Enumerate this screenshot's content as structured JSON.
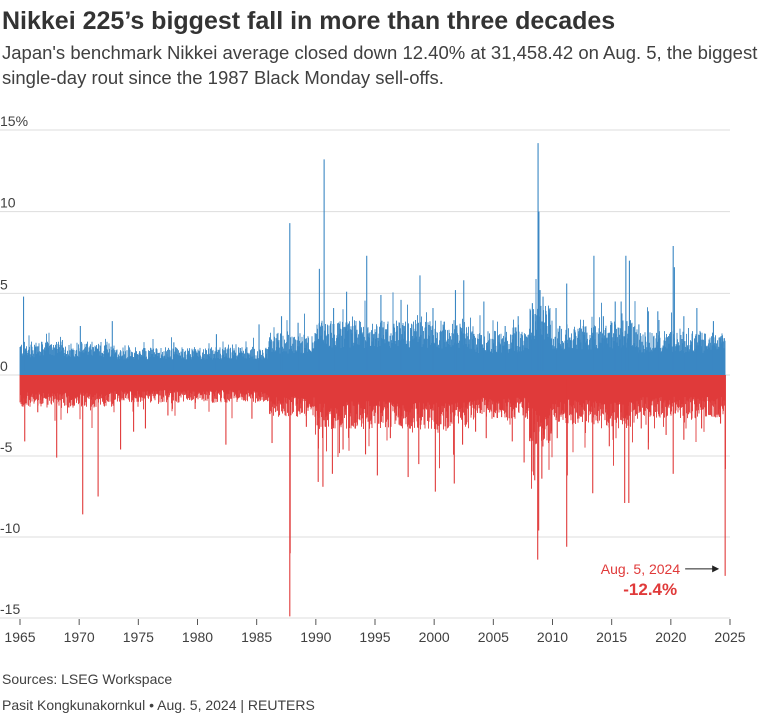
{
  "title": "Nikkei 225’s biggest fall in more than three decades",
  "subtitle": "Japan's benchmark Nikkei average closed down 12.40% at 31,458.42 on Aug. 5, the biggest single-day rout since the 1987 Black Monday sell-offs.",
  "source": "Sources: LSEG Workspace",
  "credit": "Pasit Kongkunakornkul • Aug. 5, 2024 | REUTERS",
  "colors": {
    "up": "#3a87c3",
    "down": "#e03a3a",
    "grid": "#dddddd",
    "text": "#333333",
    "annotation": "#e03a3a"
  },
  "chart_data": {
    "type": "bar",
    "title": "",
    "xlabel": "",
    "ylabel": "",
    "xlim": [
      1965,
      2025
    ],
    "ylim": [
      -15,
      15
    ],
    "grid": true,
    "y_ticks": [
      15,
      10,
      5,
      0,
      -5,
      -10,
      -15
    ],
    "y_tick_labels": [
      "15%",
      "10",
      "5",
      "0",
      "-5",
      "-10",
      "-15"
    ],
    "x_ticks": [
      1965,
      1970,
      1975,
      1980,
      1985,
      1990,
      1995,
      2000,
      2005,
      2010,
      2015,
      2020,
      2025
    ],
    "x_tick_labels": [
      "1965",
      "1970",
      "1975",
      "1980",
      "1985",
      "1990",
      "1995",
      "2000",
      "2005",
      "2010",
      "2015",
      "2020",
      "2025"
    ],
    "series": [
      {
        "values": [
          [
            1965.3,
            4.8
          ],
          [
            1970.1,
            3.0
          ],
          [
            1972.8,
            3.3
          ],
          [
            1978.0,
            2.0
          ],
          [
            1981.6,
            2.5
          ],
          [
            1985.2,
            3.1
          ],
          [
            1987.1,
            3.6
          ],
          [
            1987.8,
            9.3
          ],
          [
            1988.5,
            3.2
          ],
          [
            1990.3,
            6.5
          ],
          [
            1990.7,
            13.2
          ],
          [
            1991.5,
            4.1
          ],
          [
            1992.6,
            5.1
          ],
          [
            1994.3,
            7.3
          ],
          [
            1995.5,
            4.9
          ],
          [
            1997.2,
            4.6
          ],
          [
            1998.8,
            6.1
          ],
          [
            1999.9,
            4.1
          ],
          [
            2001.8,
            5.2
          ],
          [
            2002.5,
            5.8
          ],
          [
            2004.2,
            4.5
          ],
          [
            2006.0,
            3.0
          ],
          [
            2007.1,
            3.6
          ],
          [
            2008.3,
            4.4
          ],
          [
            2008.78,
            14.2
          ],
          [
            2008.85,
            10.0
          ],
          [
            2008.95,
            5.2
          ],
          [
            2009.2,
            4.8
          ],
          [
            2010.3,
            4.1
          ],
          [
            2011.2,
            5.6
          ],
          [
            2012.6,
            3.0
          ],
          [
            2013.5,
            7.3
          ],
          [
            2014.3,
            3.6
          ],
          [
            2015.3,
            4.5
          ],
          [
            2015.8,
            4.5
          ],
          [
            2016.2,
            7.3
          ],
          [
            2016.5,
            7.0
          ],
          [
            2017.3,
            3.1
          ],
          [
            2018.1,
            3.9
          ],
          [
            2018.9,
            3.9
          ],
          [
            2020.2,
            7.9
          ],
          [
            2020.3,
            6.6
          ],
          [
            2021.1,
            3.6
          ],
          [
            2022.2,
            4.1
          ],
          [
            2023.6,
            3.3
          ],
          [
            2024.3,
            2.0
          ]
        ]
      },
      {
        "values": [
          [
            1965.4,
            -4.1
          ],
          [
            1966.5,
            -2.3
          ],
          [
            1968.1,
            -5.1
          ],
          [
            1970.3,
            -8.6
          ],
          [
            1971.6,
            -7.5
          ],
          [
            1973.5,
            -4.6
          ],
          [
            1974.6,
            -3.5
          ],
          [
            1975.6,
            -3.3
          ],
          [
            1977.5,
            -2.5
          ],
          [
            1979.8,
            -2.1
          ],
          [
            1982.4,
            -4.3
          ],
          [
            1984.6,
            -2.7
          ],
          [
            1986.3,
            -4.2
          ],
          [
            1987.8,
            -14.9
          ],
          [
            1987.83,
            -11.0
          ],
          [
            1989.2,
            -3.2
          ],
          [
            1990.2,
            -6.6
          ],
          [
            1990.6,
            -6.9
          ],
          [
            1991.4,
            -6.1
          ],
          [
            1992.3,
            -4.6
          ],
          [
            1994.2,
            -4.9
          ],
          [
            1995.2,
            -6.2
          ],
          [
            1996.3,
            -3.9
          ],
          [
            1997.8,
            -6.3
          ],
          [
            1998.7,
            -5.5
          ],
          [
            2000.1,
            -7.2
          ],
          [
            2001.7,
            -6.7
          ],
          [
            2002.4,
            -4.3
          ],
          [
            2003.5,
            -3.5
          ],
          [
            2004.4,
            -3.9
          ],
          [
            2005.7,
            -2.6
          ],
          [
            2006.6,
            -4.1
          ],
          [
            2007.6,
            -5.4
          ],
          [
            2008.5,
            -6.5
          ],
          [
            2008.75,
            -11.4
          ],
          [
            2008.83,
            -9.6
          ],
          [
            2009.1,
            -6.4
          ],
          [
            2010.4,
            -3.9
          ],
          [
            2011.2,
            -10.6
          ],
          [
            2011.25,
            -6.2
          ],
          [
            2013.4,
            -7.3
          ],
          [
            2014.8,
            -4.4
          ],
          [
            2016.1,
            -7.9
          ],
          [
            2016.45,
            -7.9
          ],
          [
            2017.5,
            -3.3
          ],
          [
            2018.1,
            -4.6
          ],
          [
            2019.6,
            -3.7
          ],
          [
            2020.2,
            -6.1
          ],
          [
            2021.1,
            -4.0
          ],
          [
            2022.6,
            -3.3
          ],
          [
            2023.4,
            -2.4
          ],
          [
            2024.2,
            -3.0
          ],
          [
            2024.59,
            -12.4
          ],
          [
            2024.61,
            -5.8
          ]
        ]
      }
    ],
    "annotations": [
      {
        "date_label": "Aug. 5, 2024",
        "value_label": "-12.4%",
        "x": 2024.59,
        "y": -12.4
      }
    ]
  }
}
